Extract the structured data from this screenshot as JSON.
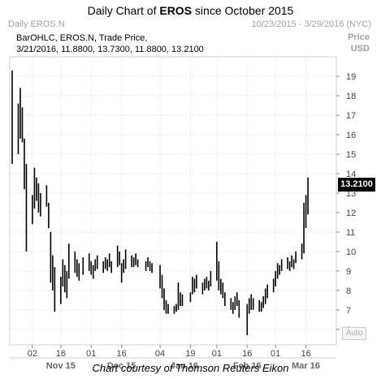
{
  "header": {
    "title_prefix": "Daily Chart of ",
    "title_ticker": "EROS",
    "title_suffix": " since October 2015",
    "source_label": "Daily EROS.N",
    "date_range": "10/23/2015 - 3/29/2016 (NYC)",
    "axis_label_1": "Price",
    "axis_label_2": "USD"
  },
  "legend": {
    "line1": "BarOHLC, EROS.N, Trade Price,",
    "line2": "3/21/2016, 11.8800, 13.7300, 11.8800, 13.2100"
  },
  "last_price_label": "13.2100",
  "auto_button": "Auto",
  "footer": "Chart courtesy of Thomson Reuters Eikon",
  "colors": {
    "bars": "#000000",
    "grid": "#d9d9d9",
    "axis_text": "#444444",
    "muted": "#a0a0a0"
  },
  "chart_data": {
    "type": "bar",
    "subtype": "ohlc",
    "title": "Daily Chart of EROS since October 2015",
    "ylabel": "Price USD",
    "ylim": [
      5.2,
      20.0
    ],
    "y_ticks": [
      6,
      7,
      8,
      9,
      10,
      11,
      12,
      13,
      14,
      15,
      16,
      17,
      18,
      19
    ],
    "x_day_ticks": [
      "02",
      "16",
      "01",
      "16",
      "04",
      "19",
      "01",
      "16",
      "01",
      "16"
    ],
    "x_month_labels": [
      "Nov 15",
      "Dec 15",
      "Jan 16",
      "Feb 16",
      "Mar 16"
    ],
    "grid": true,
    "last_value": 13.21,
    "bars": [
      {
        "date": "2015-10-23",
        "high": 19.3,
        "low": 14.5
      },
      {
        "date": "2015-10-26",
        "high": 17.6,
        "low": 15.0
      },
      {
        "date": "2015-10-27",
        "high": 18.4,
        "low": 15.8
      },
      {
        "date": "2015-10-28",
        "high": 17.4,
        "low": 15.6
      },
      {
        "date": "2015-10-29",
        "high": 15.8,
        "low": 13.2
      },
      {
        "date": "2015-10-30",
        "high": 14.5,
        "low": 10.0
      },
      {
        "date": "2015-11-02",
        "high": 12.9,
        "low": 11.4
      },
      {
        "date": "2015-11-03",
        "high": 14.3,
        "low": 12.2
      },
      {
        "date": "2015-11-04",
        "high": 13.8,
        "low": 12.6
      },
      {
        "date": "2015-11-05",
        "high": 13.5,
        "low": 12.0
      },
      {
        "date": "2015-11-06",
        "high": 13.0,
        "low": 11.8
      },
      {
        "date": "2015-11-09",
        "high": 13.4,
        "low": 12.3
      },
      {
        "date": "2015-11-10",
        "high": 12.5,
        "low": 11.2
      },
      {
        "date": "2015-11-11",
        "high": 11.0,
        "low": 8.4
      },
      {
        "date": "2015-11-12",
        "high": 9.8,
        "low": 8.0
      },
      {
        "date": "2015-11-13",
        "high": 9.2,
        "low": 6.9
      },
      {
        "date": "2015-11-16",
        "high": 8.7,
        "low": 7.3
      },
      {
        "date": "2015-11-17",
        "high": 9.6,
        "low": 8.2
      },
      {
        "date": "2015-11-18",
        "high": 9.3,
        "low": 7.9
      },
      {
        "date": "2015-11-19",
        "high": 9.0,
        "low": 7.6
      },
      {
        "date": "2015-11-20",
        "high": 10.4,
        "low": 8.6
      },
      {
        "date": "2015-11-23",
        "high": 10.0,
        "low": 8.9
      },
      {
        "date": "2015-11-24",
        "high": 9.6,
        "low": 8.7
      },
      {
        "date": "2015-11-25",
        "high": 9.4,
        "low": 8.5
      },
      {
        "date": "2015-11-27",
        "high": 9.7,
        "low": 8.8
      },
      {
        "date": "2015-11-30",
        "high": 9.9,
        "low": 9.0
      },
      {
        "date": "2015-12-01",
        "high": 9.5,
        "low": 8.8
      },
      {
        "date": "2015-12-02",
        "high": 9.3,
        "low": 8.6
      },
      {
        "date": "2015-12-03",
        "high": 9.6,
        "low": 9.0
      },
      {
        "date": "2015-12-04",
        "high": 9.8,
        "low": 9.1
      },
      {
        "date": "2015-12-07",
        "high": 9.5,
        "low": 8.9
      },
      {
        "date": "2015-12-08",
        "high": 9.7,
        "low": 9.1
      },
      {
        "date": "2015-12-09",
        "high": 9.6,
        "low": 9.0
      },
      {
        "date": "2015-12-10",
        "high": 9.9,
        "low": 9.2
      },
      {
        "date": "2015-12-11",
        "high": 9.5,
        "low": 8.9
      },
      {
        "date": "2015-12-14",
        "high": 10.3,
        "low": 9.2
      },
      {
        "date": "2015-12-15",
        "high": 10.0,
        "low": 9.3
      },
      {
        "date": "2015-12-16",
        "high": 9.4,
        "low": 8.4
      },
      {
        "date": "2015-12-17",
        "high": 9.6,
        "low": 8.9
      },
      {
        "date": "2015-12-18",
        "high": 10.1,
        "low": 9.1
      },
      {
        "date": "2015-12-21",
        "high": 9.8,
        "low": 9.2
      },
      {
        "date": "2015-12-22",
        "high": 9.7,
        "low": 9.2
      },
      {
        "date": "2015-12-23",
        "high": 9.9,
        "low": 9.3
      },
      {
        "date": "2015-12-24",
        "high": 9.6,
        "low": 9.2
      },
      {
        "date": "2015-12-28",
        "high": 9.5,
        "low": 9.0
      },
      {
        "date": "2015-12-29",
        "high": 9.7,
        "low": 9.2
      },
      {
        "date": "2015-12-30",
        "high": 9.5,
        "low": 9.0
      },
      {
        "date": "2015-12-31",
        "high": 9.4,
        "low": 8.9
      },
      {
        "date": "2016-01-04",
        "high": 9.3,
        "low": 8.1
      },
      {
        "date": "2016-01-05",
        "high": 8.8,
        "low": 7.6
      },
      {
        "date": "2016-01-06",
        "high": 8.1,
        "low": 7.0
      },
      {
        "date": "2016-01-07",
        "high": 7.5,
        "low": 6.8
      },
      {
        "date": "2016-01-08",
        "high": 7.3,
        "low": 6.8
      },
      {
        "date": "2016-01-11",
        "high": 7.2,
        "low": 6.8
      },
      {
        "date": "2016-01-12",
        "high": 7.3,
        "low": 6.9
      },
      {
        "date": "2016-01-13",
        "high": 8.4,
        "low": 7.0
      },
      {
        "date": "2016-01-14",
        "high": 7.9,
        "low": 7.2
      },
      {
        "date": "2016-01-15",
        "high": 7.8,
        "low": 7.2
      },
      {
        "date": "2016-01-19",
        "high": 7.9,
        "low": 7.4
      },
      {
        "date": "2016-01-20",
        "high": 8.7,
        "low": 7.8
      },
      {
        "date": "2016-01-21",
        "high": 8.6,
        "low": 7.9
      },
      {
        "date": "2016-01-22",
        "high": 8.8,
        "low": 8.1
      },
      {
        "date": "2016-01-25",
        "high": 8.4,
        "low": 7.8
      },
      {
        "date": "2016-01-26",
        "high": 8.6,
        "low": 8.0
      },
      {
        "date": "2016-01-27",
        "high": 8.7,
        "low": 8.1
      },
      {
        "date": "2016-01-28",
        "high": 8.5,
        "low": 8.0
      },
      {
        "date": "2016-01-29",
        "high": 9.0,
        "low": 8.2
      },
      {
        "date": "2016-02-01",
        "high": 10.5,
        "low": 8.5
      },
      {
        "date": "2016-02-02",
        "high": 9.5,
        "low": 8.0
      },
      {
        "date": "2016-02-03",
        "high": 8.6,
        "low": 7.8
      },
      {
        "date": "2016-02-04",
        "high": 8.4,
        "low": 7.6
      },
      {
        "date": "2016-02-05",
        "high": 7.9,
        "low": 7.2
      },
      {
        "date": "2016-02-08",
        "high": 7.6,
        "low": 7.0
      },
      {
        "date": "2016-02-09",
        "high": 7.4,
        "low": 6.8
      },
      {
        "date": "2016-02-10",
        "high": 7.7,
        "low": 7.0
      },
      {
        "date": "2016-02-11",
        "high": 7.9,
        "low": 7.2
      },
      {
        "date": "2016-02-12",
        "high": 7.5,
        "low": 6.6
      },
      {
        "date": "2016-02-16",
        "high": 7.3,
        "low": 5.7
      },
      {
        "date": "2016-02-17",
        "high": 7.6,
        "low": 6.8
      },
      {
        "date": "2016-02-18",
        "high": 7.8,
        "low": 7.0
      },
      {
        "date": "2016-02-19",
        "high": 7.6,
        "low": 7.0
      },
      {
        "date": "2016-02-22",
        "high": 7.5,
        "low": 6.9
      },
      {
        "date": "2016-02-23",
        "high": 7.4,
        "low": 6.9
      },
      {
        "date": "2016-02-24",
        "high": 7.7,
        "low": 7.1
      },
      {
        "date": "2016-02-25",
        "high": 8.1,
        "low": 7.3
      },
      {
        "date": "2016-02-26",
        "high": 8.3,
        "low": 7.6
      },
      {
        "date": "2016-02-29",
        "high": 8.6,
        "low": 7.9
      },
      {
        "date": "2016-03-01",
        "high": 9.0,
        "low": 8.2
      },
      {
        "date": "2016-03-02",
        "high": 9.4,
        "low": 8.6
      },
      {
        "date": "2016-03-03",
        "high": 9.3,
        "low": 8.8
      },
      {
        "date": "2016-03-04",
        "high": 9.6,
        "low": 9.0
      },
      {
        "date": "2016-03-07",
        "high": 9.7,
        "low": 9.1
      },
      {
        "date": "2016-03-08",
        "high": 9.5,
        "low": 9.0
      },
      {
        "date": "2016-03-09",
        "high": 9.8,
        "low": 9.2
      },
      {
        "date": "2016-03-10",
        "high": 9.6,
        "low": 9.1
      },
      {
        "date": "2016-03-11",
        "high": 10.0,
        "low": 9.4
      },
      {
        "date": "2016-03-14",
        "high": 10.4,
        "low": 9.6
      },
      {
        "date": "2016-03-15",
        "high": 12.5,
        "low": 9.9
      },
      {
        "date": "2016-03-16",
        "high": 12.9,
        "low": 11.2
      },
      {
        "date": "2016-03-17",
        "high": 13.8,
        "low": 11.9
      }
    ]
  }
}
